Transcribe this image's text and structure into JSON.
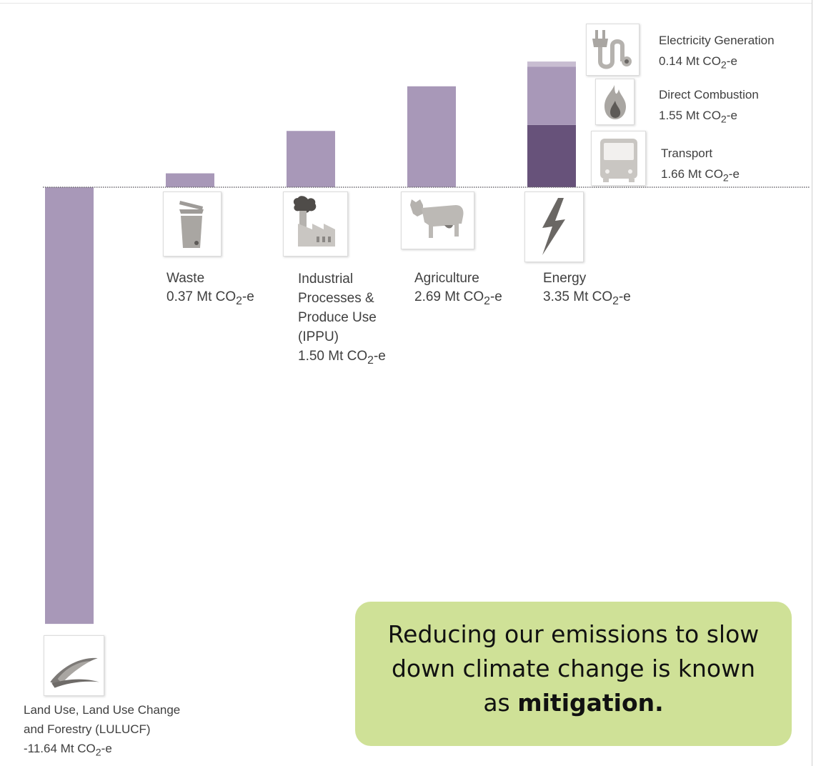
{
  "chart_data": {
    "type": "bar",
    "unit": "Mt CO2-e",
    "categories": [
      "Land Use, Land Use Change and Forestry (LULUCF)",
      "Waste",
      "Industrial Processes & Produce Use (IPPU)",
      "Agriculture",
      "Energy"
    ],
    "values": [
      -11.64,
      0.37,
      1.5,
      2.69,
      3.35
    ],
    "energy_breakdown": [
      {
        "name": "Transport",
        "value": 1.66,
        "color": "#67527a"
      },
      {
        "name": "Direct Combustion",
        "value": 1.55,
        "color": "#a898b8"
      },
      {
        "name": "Electricity Generation",
        "value": 0.14,
        "color": "#c8bdd1"
      }
    ],
    "bar_color": "#a898b8",
    "baseline_style": "dotted"
  },
  "labels": {
    "lulucf": {
      "line1": "Land Use, Land Use Change",
      "line2": "and Forestry (LULUCF)",
      "value": "-11.64 Mt CO",
      "sub": "2",
      "suffix": "-e"
    },
    "waste": {
      "name": "Waste",
      "value": "0.37 Mt CO",
      "sub": "2",
      "suffix": "-e"
    },
    "ippu": {
      "line1": "Industrial",
      "line2": "Processes &",
      "line3": "Produce Use",
      "line4": "(IPPU)",
      "value": "1.50 Mt CO",
      "sub": "2",
      "suffix": "-e"
    },
    "agriculture": {
      "name": "Agriculture",
      "value": "2.69 Mt CO",
      "sub": "2",
      "suffix": "-e"
    },
    "energy": {
      "name": "Energy",
      "value": "3.35 Mt CO",
      "sub": "2",
      "suffix": "-e"
    },
    "electricity": {
      "name": "Electricity Generation",
      "value": "0.14 Mt CO",
      "sub": "2",
      "suffix": "-e"
    },
    "combustion": {
      "name": "Direct Combustion",
      "value": "1.55 Mt CO",
      "sub": "2",
      "suffix": "-e"
    },
    "transport": {
      "name": "Transport",
      "value": "1.66 Mt CO",
      "sub": "2",
      "suffix": "-e"
    }
  },
  "icons": {
    "lulucf": "leaf-icon",
    "waste": "rubbish-bin-icon",
    "ippu": "factory-icon",
    "agriculture": "cow-icon",
    "energy": "lightning-bolt-icon",
    "electricity": "power-plug-icon",
    "combustion": "flame-icon",
    "transport": "bus-icon"
  },
  "callout": {
    "line1": "Reducing our emissions to slow",
    "line2": "down climate change is known",
    "prefix": "as ",
    "emphasis": "mitigation."
  },
  "colors": {
    "callout_bg": "#cfe197",
    "icon_gray": "#8a8784"
  }
}
